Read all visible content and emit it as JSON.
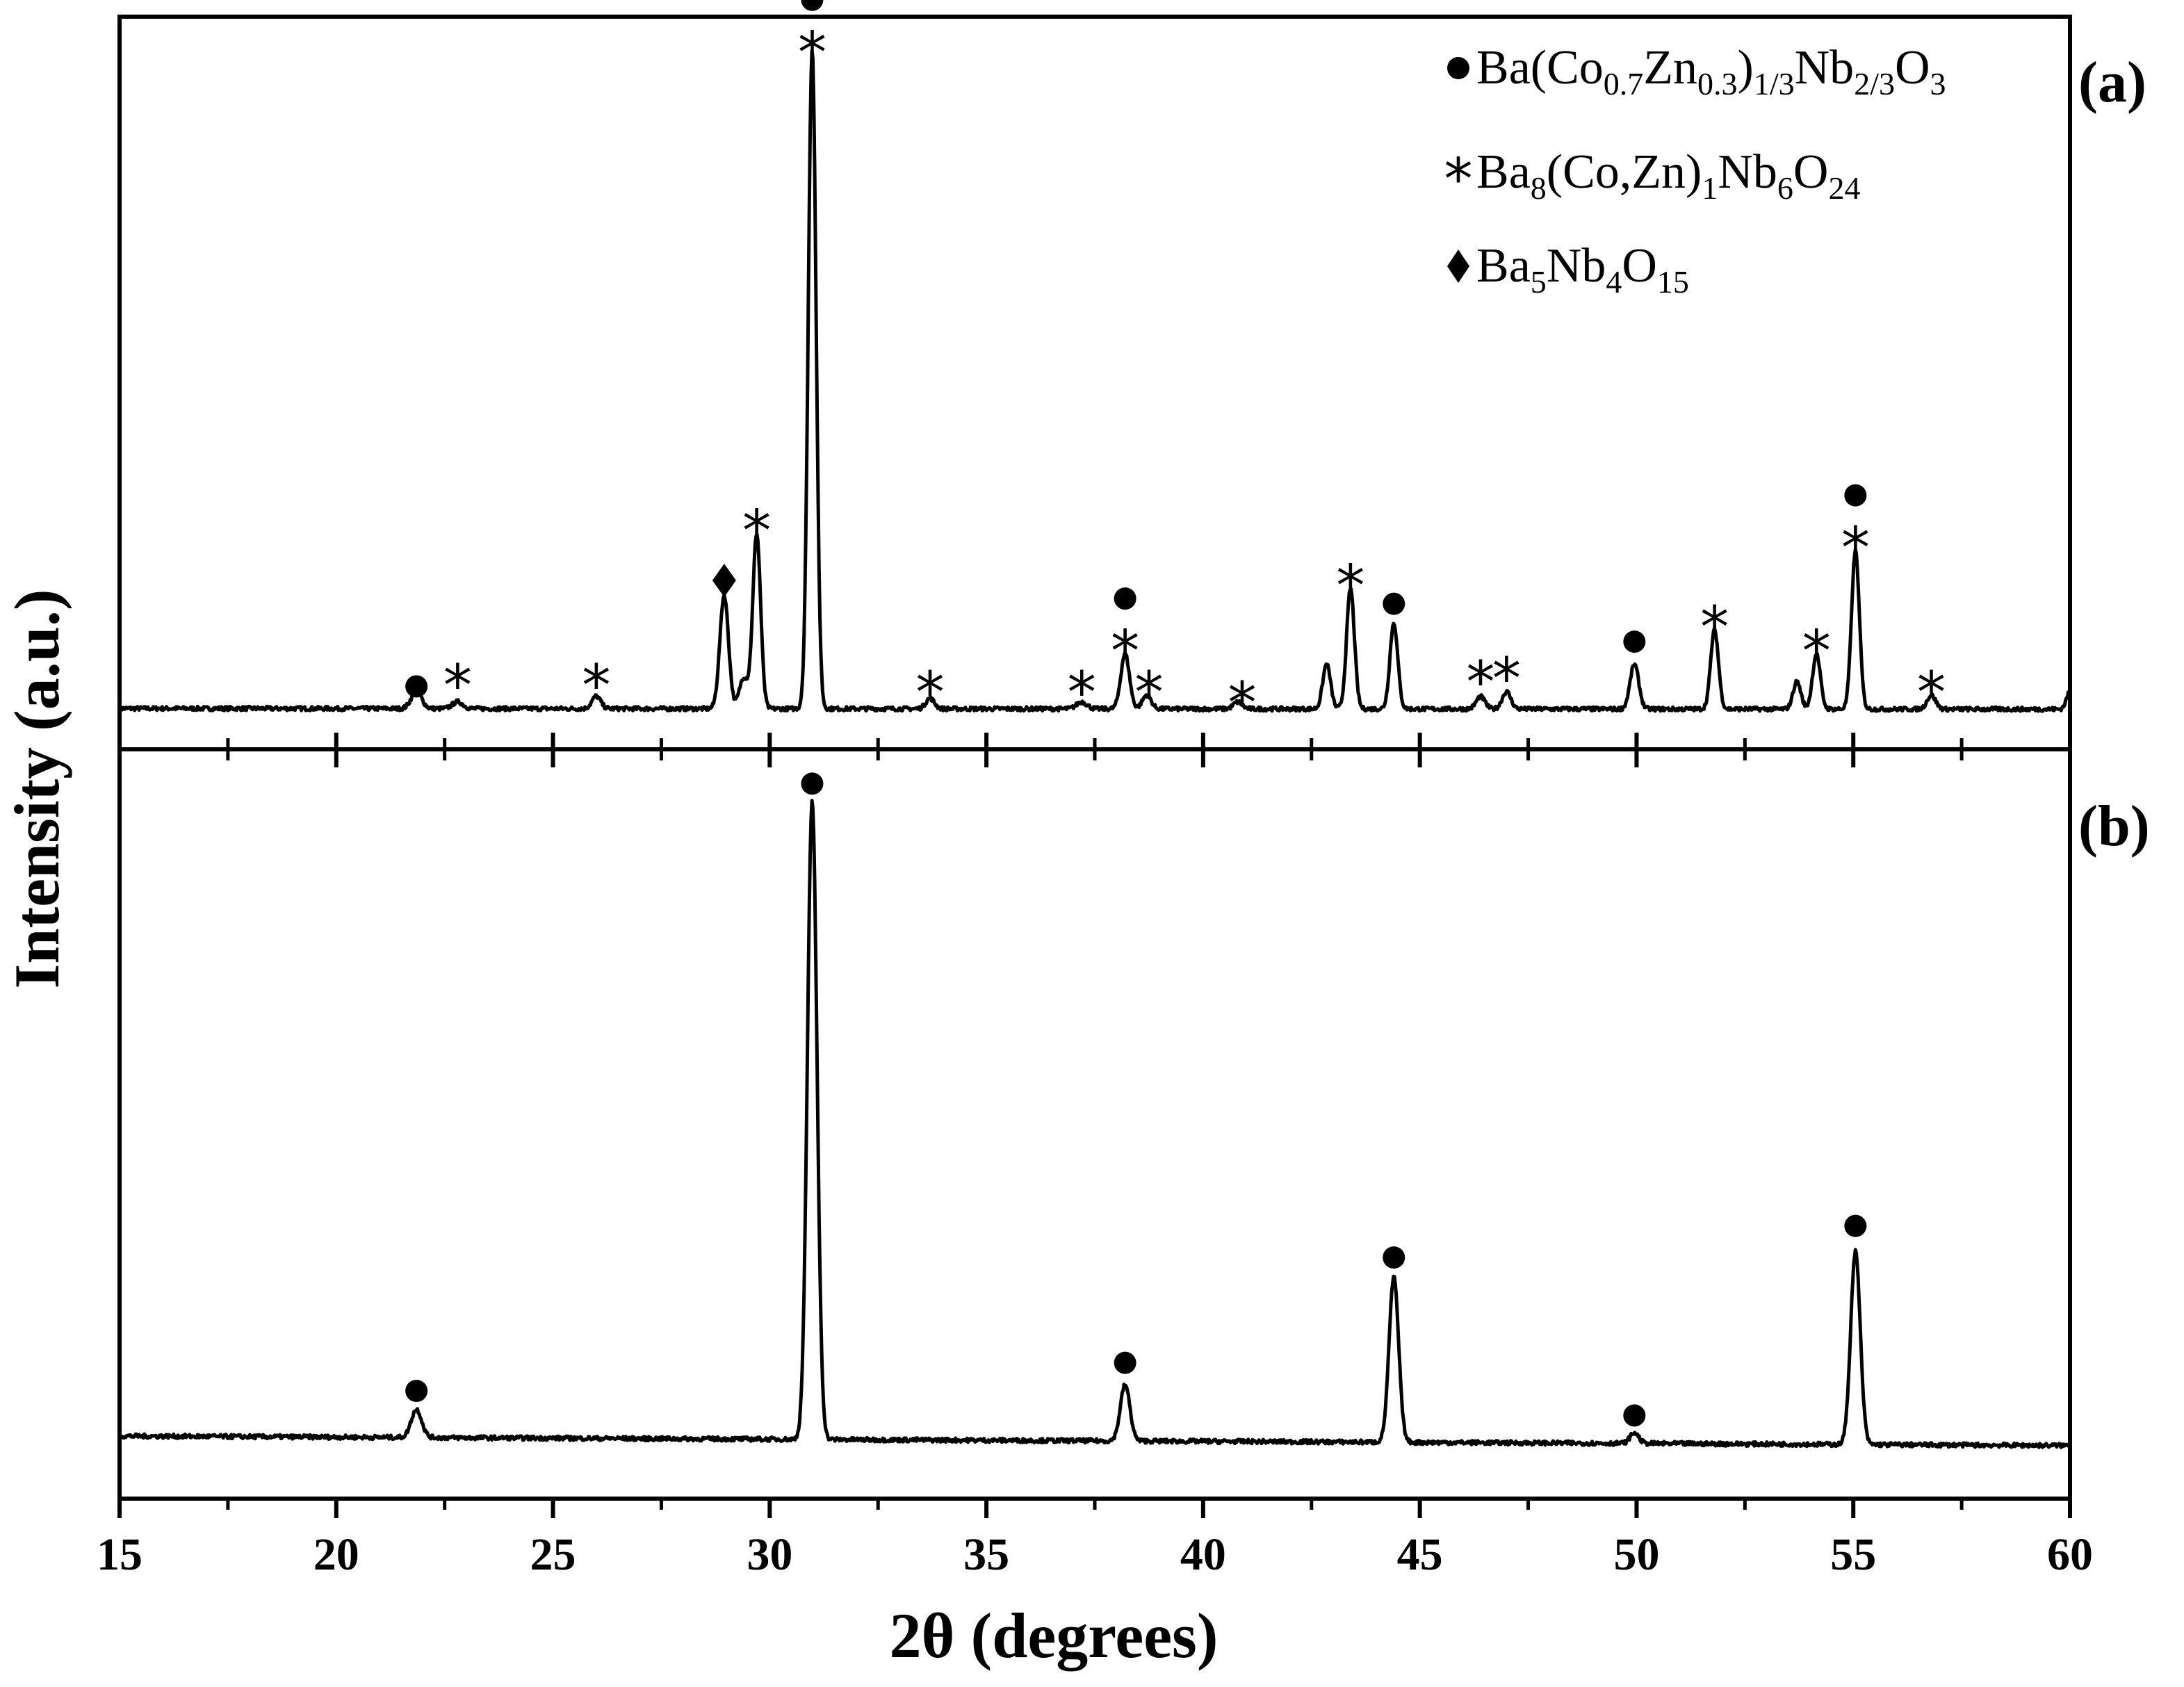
{
  "chart_data": {
    "type": "line",
    "title": "",
    "xlabel": "2θ (degrees)",
    "ylabel": "Intensity (a.u.)",
    "xlim": [
      15,
      60
    ],
    "xticks": [
      15,
      20,
      25,
      30,
      35,
      40,
      45,
      50,
      55,
      60
    ],
    "grid": false,
    "legend": {
      "position": "top-right",
      "entries": [
        {
          "marker": "circle",
          "base": "Ba(Co",
          "s1": "0.7",
          "t1": "Zn",
          "s2": "0.3",
          "t2": ")",
          "s3": "1/3",
          "t3": "Nb",
          "s4": "2/3",
          "t4": "O",
          "s5": "3"
        },
        {
          "marker": "asterisk",
          "base": "Ba",
          "s1": "8",
          "t1": "(Co,Zn)",
          "s2": "1",
          "t2": "Nb",
          "s3": "6",
          "t3": "O",
          "s4": "24"
        },
        {
          "marker": "diamond",
          "base": "Ba",
          "s1": "5",
          "t1": "Nb",
          "s2": "4",
          "t2": "O",
          "s3": "15"
        }
      ]
    },
    "panels": [
      {
        "label": "(a)",
        "baseline": 3,
        "ylim": [
          0,
          100
        ],
        "peaks": [
          {
            "x": 21.85,
            "h": 2.5,
            "w": 0.12
          },
          {
            "x": 22.8,
            "h": 1.0,
            "w": 0.12
          },
          {
            "x": 26.0,
            "h": 1.8,
            "w": 0.1
          },
          {
            "x": 28.95,
            "h": 16.5,
            "w": 0.1
          },
          {
            "x": 29.4,
            "h": 4.5,
            "w": 0.1
          },
          {
            "x": 29.7,
            "h": 25.5,
            "w": 0.09
          },
          {
            "x": 30.98,
            "h": 96.0,
            "w": 0.09
          },
          {
            "x": 33.7,
            "h": 1.5,
            "w": 0.1
          },
          {
            "x": 37.2,
            "h": 1.0,
            "w": 0.12
          },
          {
            "x": 38.2,
            "h": 8.0,
            "w": 0.1
          },
          {
            "x": 38.7,
            "h": 2.0,
            "w": 0.1
          },
          {
            "x": 40.8,
            "h": 1.0,
            "w": 0.1
          },
          {
            "x": 42.85,
            "h": 6.5,
            "w": 0.09
          },
          {
            "x": 43.4,
            "h": 17.5,
            "w": 0.09
          },
          {
            "x": 44.4,
            "h": 12.5,
            "w": 0.09
          },
          {
            "x": 46.4,
            "h": 1.8,
            "w": 0.1
          },
          {
            "x": 47.0,
            "h": 2.5,
            "w": 0.1
          },
          {
            "x": 49.95,
            "h": 6.5,
            "w": 0.1
          },
          {
            "x": 51.8,
            "h": 11.5,
            "w": 0.09
          },
          {
            "x": 53.7,
            "h": 4.0,
            "w": 0.09
          },
          {
            "x": 54.15,
            "h": 8.0,
            "w": 0.09
          },
          {
            "x": 55.05,
            "h": 23.0,
            "w": 0.09
          },
          {
            "x": 56.8,
            "h": 2.0,
            "w": 0.1
          },
          {
            "x": 60.0,
            "h": 2.5,
            "w": 0.08
          }
        ],
        "markers": [
          {
            "x": 21.85,
            "y": 4.5,
            "symbols": [
              "circle"
            ]
          },
          {
            "x": 22.8,
            "y": 6.0,
            "symbols": [
              "asterisk"
            ]
          },
          {
            "x": 26.0,
            "y": 6.0,
            "symbols": [
              "asterisk"
            ]
          },
          {
            "x": 28.95,
            "y": 19.5,
            "symbols": [
              "diamond"
            ]
          },
          {
            "x": 29.7,
            "y": 28.5,
            "symbols": [
              "asterisk"
            ]
          },
          {
            "x": 30.98,
            "y": 98.0,
            "symbols": [
              "asterisk",
              "circle"
            ]
          },
          {
            "x": 33.7,
            "y": 5.0,
            "symbols": [
              "asterisk"
            ]
          },
          {
            "x": 37.2,
            "y": 5.0,
            "symbols": [
              "asterisk"
            ]
          },
          {
            "x": 38.2,
            "y": 11.0,
            "symbols": [
              "asterisk",
              "circle"
            ]
          },
          {
            "x": 38.75,
            "y": 5.0,
            "symbols": [
              "asterisk"
            ]
          },
          {
            "x": 40.9,
            "y": 3.5,
            "symbols": [
              "asterisk"
            ]
          },
          {
            "x": 43.4,
            "y": 20.5,
            "symbols": [
              "asterisk"
            ]
          },
          {
            "x": 44.4,
            "y": 16.5,
            "symbols": [
              "circle"
            ]
          },
          {
            "x": 46.4,
            "y": 6.5,
            "symbols": [
              "asterisk"
            ]
          },
          {
            "x": 47.0,
            "y": 7.0,
            "symbols": [
              "asterisk"
            ]
          },
          {
            "x": 49.95,
            "y": 11.0,
            "symbols": [
              "circle"
            ]
          },
          {
            "x": 51.8,
            "y": 14.5,
            "symbols": [
              "asterisk"
            ]
          },
          {
            "x": 54.15,
            "y": 11.0,
            "symbols": [
              "asterisk"
            ]
          },
          {
            "x": 55.05,
            "y": 26.0,
            "symbols": [
              "asterisk",
              "circle"
            ]
          },
          {
            "x": 56.8,
            "y": 5.0,
            "symbols": [
              "asterisk"
            ]
          }
        ]
      },
      {
        "label": "(b)",
        "baseline": 4,
        "ylim": [
          0,
          100
        ],
        "peaks": [
          {
            "x": 21.85,
            "h": 4.0,
            "w": 0.12
          },
          {
            "x": 30.98,
            "h": 91.0,
            "w": 0.11
          },
          {
            "x": 38.2,
            "h": 8.0,
            "w": 0.11
          },
          {
            "x": 44.4,
            "h": 23.5,
            "w": 0.11
          },
          {
            "x": 49.95,
            "h": 1.5,
            "w": 0.1
          },
          {
            "x": 55.05,
            "h": 27.5,
            "w": 0.11
          }
        ],
        "markers": [
          {
            "x": 21.85,
            "y": 10.0,
            "symbols": [
              "circle"
            ]
          },
          {
            "x": 30.98,
            "y": 96.5,
            "symbols": [
              "circle"
            ]
          },
          {
            "x": 38.2,
            "y": 14.0,
            "symbols": [
              "circle"
            ]
          },
          {
            "x": 44.4,
            "y": 29.0,
            "symbols": [
              "circle"
            ]
          },
          {
            "x": 49.95,
            "y": 6.5,
            "symbols": [
              "circle"
            ]
          },
          {
            "x": 55.05,
            "y": 33.5,
            "symbols": [
              "circle"
            ]
          }
        ]
      }
    ]
  }
}
